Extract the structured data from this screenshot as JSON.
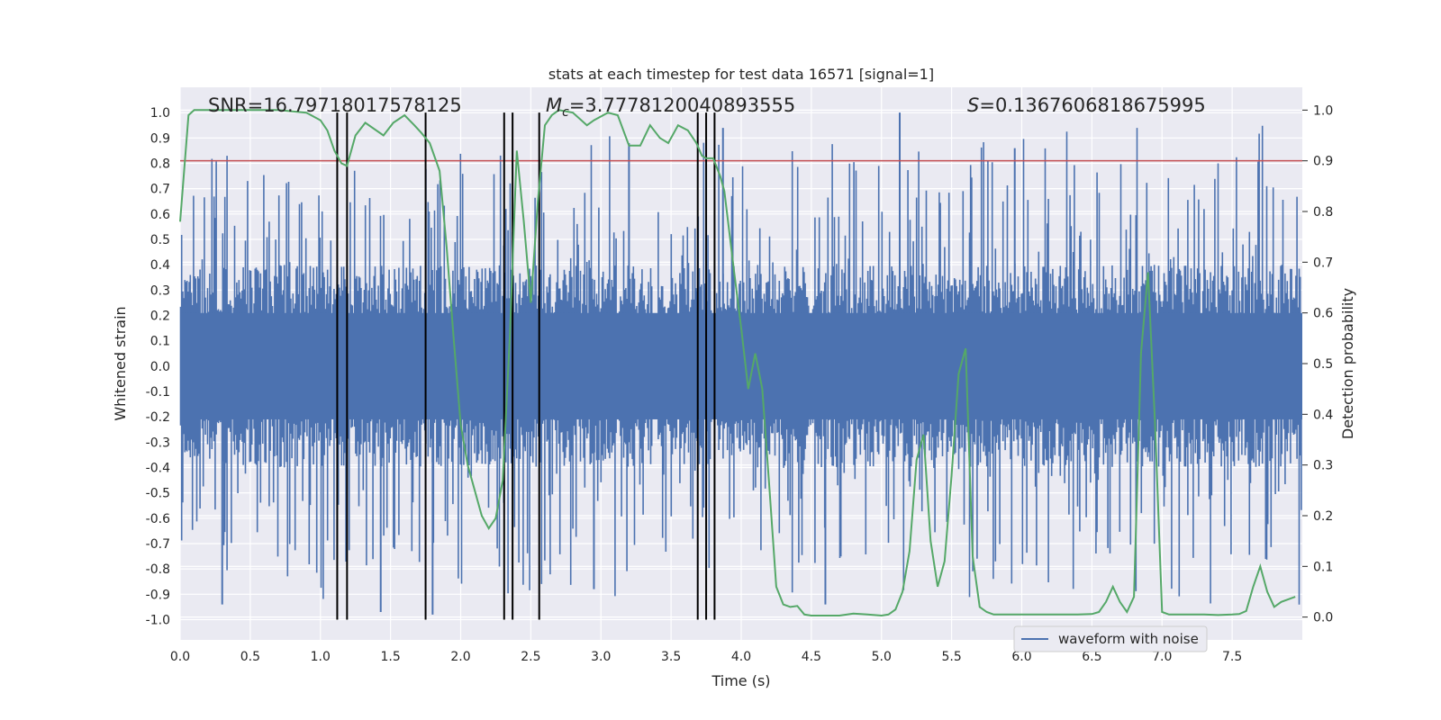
{
  "chart_data": {
    "type": "line",
    "title": "stats at each timestep for test data 16571 [signal=1]",
    "xlabel": "Time (s)",
    "ylabel_left": "Whitened strain",
    "ylabel_right": "Detection probability",
    "xlim": [
      0,
      8.0
    ],
    "ylim_left": [
      -1.08,
      1.1
    ],
    "ylim_right": [
      -0.045,
      1.045
    ],
    "x_ticks": [
      "0.0",
      "0.5",
      "1.0",
      "1.5",
      "2.0",
      "2.5",
      "3.0",
      "3.5",
      "4.0",
      "4.5",
      "5.0",
      "5.5",
      "6.0",
      "6.5",
      "7.0",
      "7.5"
    ],
    "y_ticks_left": [
      "1.0",
      "0.9",
      "0.8",
      "0.7",
      "0.6",
      "0.5",
      "0.4",
      "0.3",
      "0.2",
      "0.1",
      "0.0",
      "-0.1",
      "-0.2",
      "-0.3",
      "-0.4",
      "-0.5",
      "-0.6",
      "-0.7",
      "-0.8",
      "-0.9",
      "-1.0"
    ],
    "y_ticks_right": [
      "1.0",
      "0.9",
      "0.8",
      "0.7",
      "0.6",
      "0.5",
      "0.4",
      "0.3",
      "0.2",
      "0.1",
      "0.0"
    ],
    "grid": true,
    "legend": {
      "position": "bottom-right",
      "entries": [
        "waveform with noise"
      ]
    },
    "annotations": {
      "snr": "SNR=16.79718017578125",
      "mc_symbol": "M",
      "mc_sub": "c",
      "mc_value": "=3.7778120040893555",
      "s_symbol": "S",
      "s_value": "=0.1367606818675995"
    },
    "threshold": {
      "axis": "right",
      "value": 0.9,
      "color": "#c44e52"
    },
    "vertical_markers": [
      1.12,
      1.19,
      1.75,
      2.31,
      2.37,
      2.56,
      3.69,
      3.75,
      3.81
    ],
    "series": [
      {
        "name": "waveform with noise",
        "axis": "left",
        "color": "#4c72b0",
        "style": "dense noise, |strain| mostly below ~0.4 with spikes up to about ±1.0",
        "notable_spikes": [
          {
            "t": 5.13,
            "value": 1.0
          },
          {
            "t": 3.87,
            "value": 0.94
          },
          {
            "t": 5.95,
            "value": 0.86
          },
          {
            "t": 3.2,
            "value": 0.88
          },
          {
            "t": 0.3,
            "value": -0.94
          },
          {
            "t": 4.6,
            "value": -0.94
          },
          {
            "t": 1.8,
            "value": -0.98
          },
          {
            "t": 1.43,
            "value": -0.97
          },
          {
            "t": 2.95,
            "value": -0.88
          }
        ]
      },
      {
        "name": "detection probability",
        "axis": "right",
        "color": "#55a868",
        "x": [
          0.0,
          0.06,
          0.1,
          0.2,
          0.3,
          0.5,
          0.7,
          0.9,
          1.0,
          1.05,
          1.1,
          1.15,
          1.19,
          1.25,
          1.32,
          1.45,
          1.52,
          1.6,
          1.67,
          1.72,
          1.78,
          1.85,
          1.9,
          1.95,
          2.0,
          2.05,
          2.1,
          2.15,
          2.2,
          2.25,
          2.3,
          2.35,
          2.4,
          2.45,
          2.5,
          2.55,
          2.6,
          2.65,
          2.7,
          2.8,
          2.9,
          2.95,
          3.05,
          3.12,
          3.2,
          3.28,
          3.35,
          3.42,
          3.48,
          3.55,
          3.62,
          3.68,
          3.72,
          3.75,
          3.8,
          3.85,
          3.88,
          3.95,
          4.0,
          4.05,
          4.1,
          4.15,
          4.2,
          4.25,
          4.3,
          4.35,
          4.4,
          4.45,
          4.5,
          4.6,
          4.7,
          4.8,
          4.9,
          5.0,
          5.05,
          5.1,
          5.15,
          5.2,
          5.25,
          5.3,
          5.35,
          5.4,
          5.45,
          5.5,
          5.55,
          5.6,
          5.65,
          5.7,
          5.75,
          5.8,
          5.9,
          6.0,
          6.1,
          6.2,
          6.3,
          6.4,
          6.5,
          6.55,
          6.6,
          6.65,
          6.7,
          6.75,
          6.8,
          6.85,
          6.9,
          6.95,
          7.0,
          7.05,
          7.1,
          7.2,
          7.3,
          7.4,
          7.5,
          7.55,
          7.6,
          7.65,
          7.7,
          7.75,
          7.8,
          7.85,
          7.9,
          7.95
        ],
        "values": [
          0.78,
          0.99,
          1.0,
          1.0,
          1.0,
          1.0,
          1.0,
          0.995,
          0.98,
          0.96,
          0.92,
          0.895,
          0.89,
          0.95,
          0.975,
          0.95,
          0.975,
          0.99,
          0.97,
          0.955,
          0.935,
          0.88,
          0.73,
          0.55,
          0.38,
          0.3,
          0.25,
          0.2,
          0.175,
          0.195,
          0.27,
          0.55,
          0.92,
          0.78,
          0.62,
          0.82,
          0.97,
          0.99,
          1.0,
          0.995,
          0.97,
          0.98,
          0.995,
          0.99,
          0.93,
          0.93,
          0.97,
          0.945,
          0.935,
          0.97,
          0.96,
          0.935,
          0.91,
          0.905,
          0.905,
          0.87,
          0.84,
          0.68,
          0.57,
          0.45,
          0.52,
          0.45,
          0.26,
          0.06,
          0.025,
          0.02,
          0.022,
          0.005,
          0.003,
          0.003,
          0.003,
          0.007,
          0.005,
          0.003,
          0.005,
          0.015,
          0.05,
          0.13,
          0.31,
          0.36,
          0.15,
          0.06,
          0.11,
          0.28,
          0.48,
          0.53,
          0.12,
          0.02,
          0.01,
          0.005,
          0.005,
          0.005,
          0.005,
          0.005,
          0.005,
          0.005,
          0.006,
          0.01,
          0.03,
          0.06,
          0.03,
          0.01,
          0.04,
          0.52,
          0.68,
          0.38,
          0.01,
          0.005,
          0.005,
          0.005,
          0.005,
          0.004,
          0.005,
          0.006,
          0.012,
          0.06,
          0.1,
          0.05,
          0.02,
          0.03,
          0.035,
          0.04
        ]
      }
    ]
  }
}
